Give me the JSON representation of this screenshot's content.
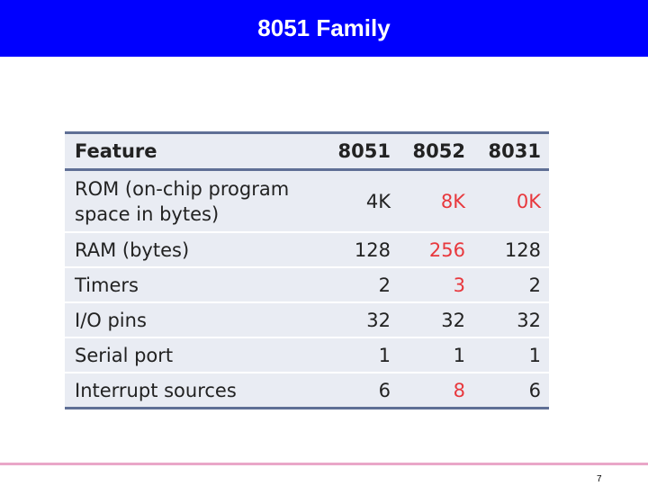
{
  "slide": {
    "title": "8051 Family",
    "page_number": "7"
  },
  "table": {
    "headers": [
      "Feature",
      "8051",
      "8052",
      "8031"
    ],
    "rows": [
      {
        "feature": "ROM (on-chip program space in bytes)",
        "v8051": "4K",
        "v8052": "8K",
        "v8031": "0K"
      },
      {
        "feature": "RAM (bytes)",
        "v8051": "128",
        "v8052": "256",
        "v8031": "128"
      },
      {
        "feature": "Timers",
        "v8051": "2",
        "v8052": "3",
        "v8031": "2"
      },
      {
        "feature": "I/O pins",
        "v8051": "32",
        "v8052": "32",
        "v8031": "32"
      },
      {
        "feature": "Serial port",
        "v8051": "1",
        "v8052": "1",
        "v8031": "1"
      },
      {
        "feature": "Interrupt sources",
        "v8051": "6",
        "v8052": "8",
        "v8031": "6"
      }
    ]
  },
  "colors": {
    "title_bar": "#0000ff",
    "table_background": "#e9ecf3",
    "table_rule": "#5f6f95",
    "highlight_text": "#e8383d",
    "footer_rule": "#e9a7c8"
  }
}
